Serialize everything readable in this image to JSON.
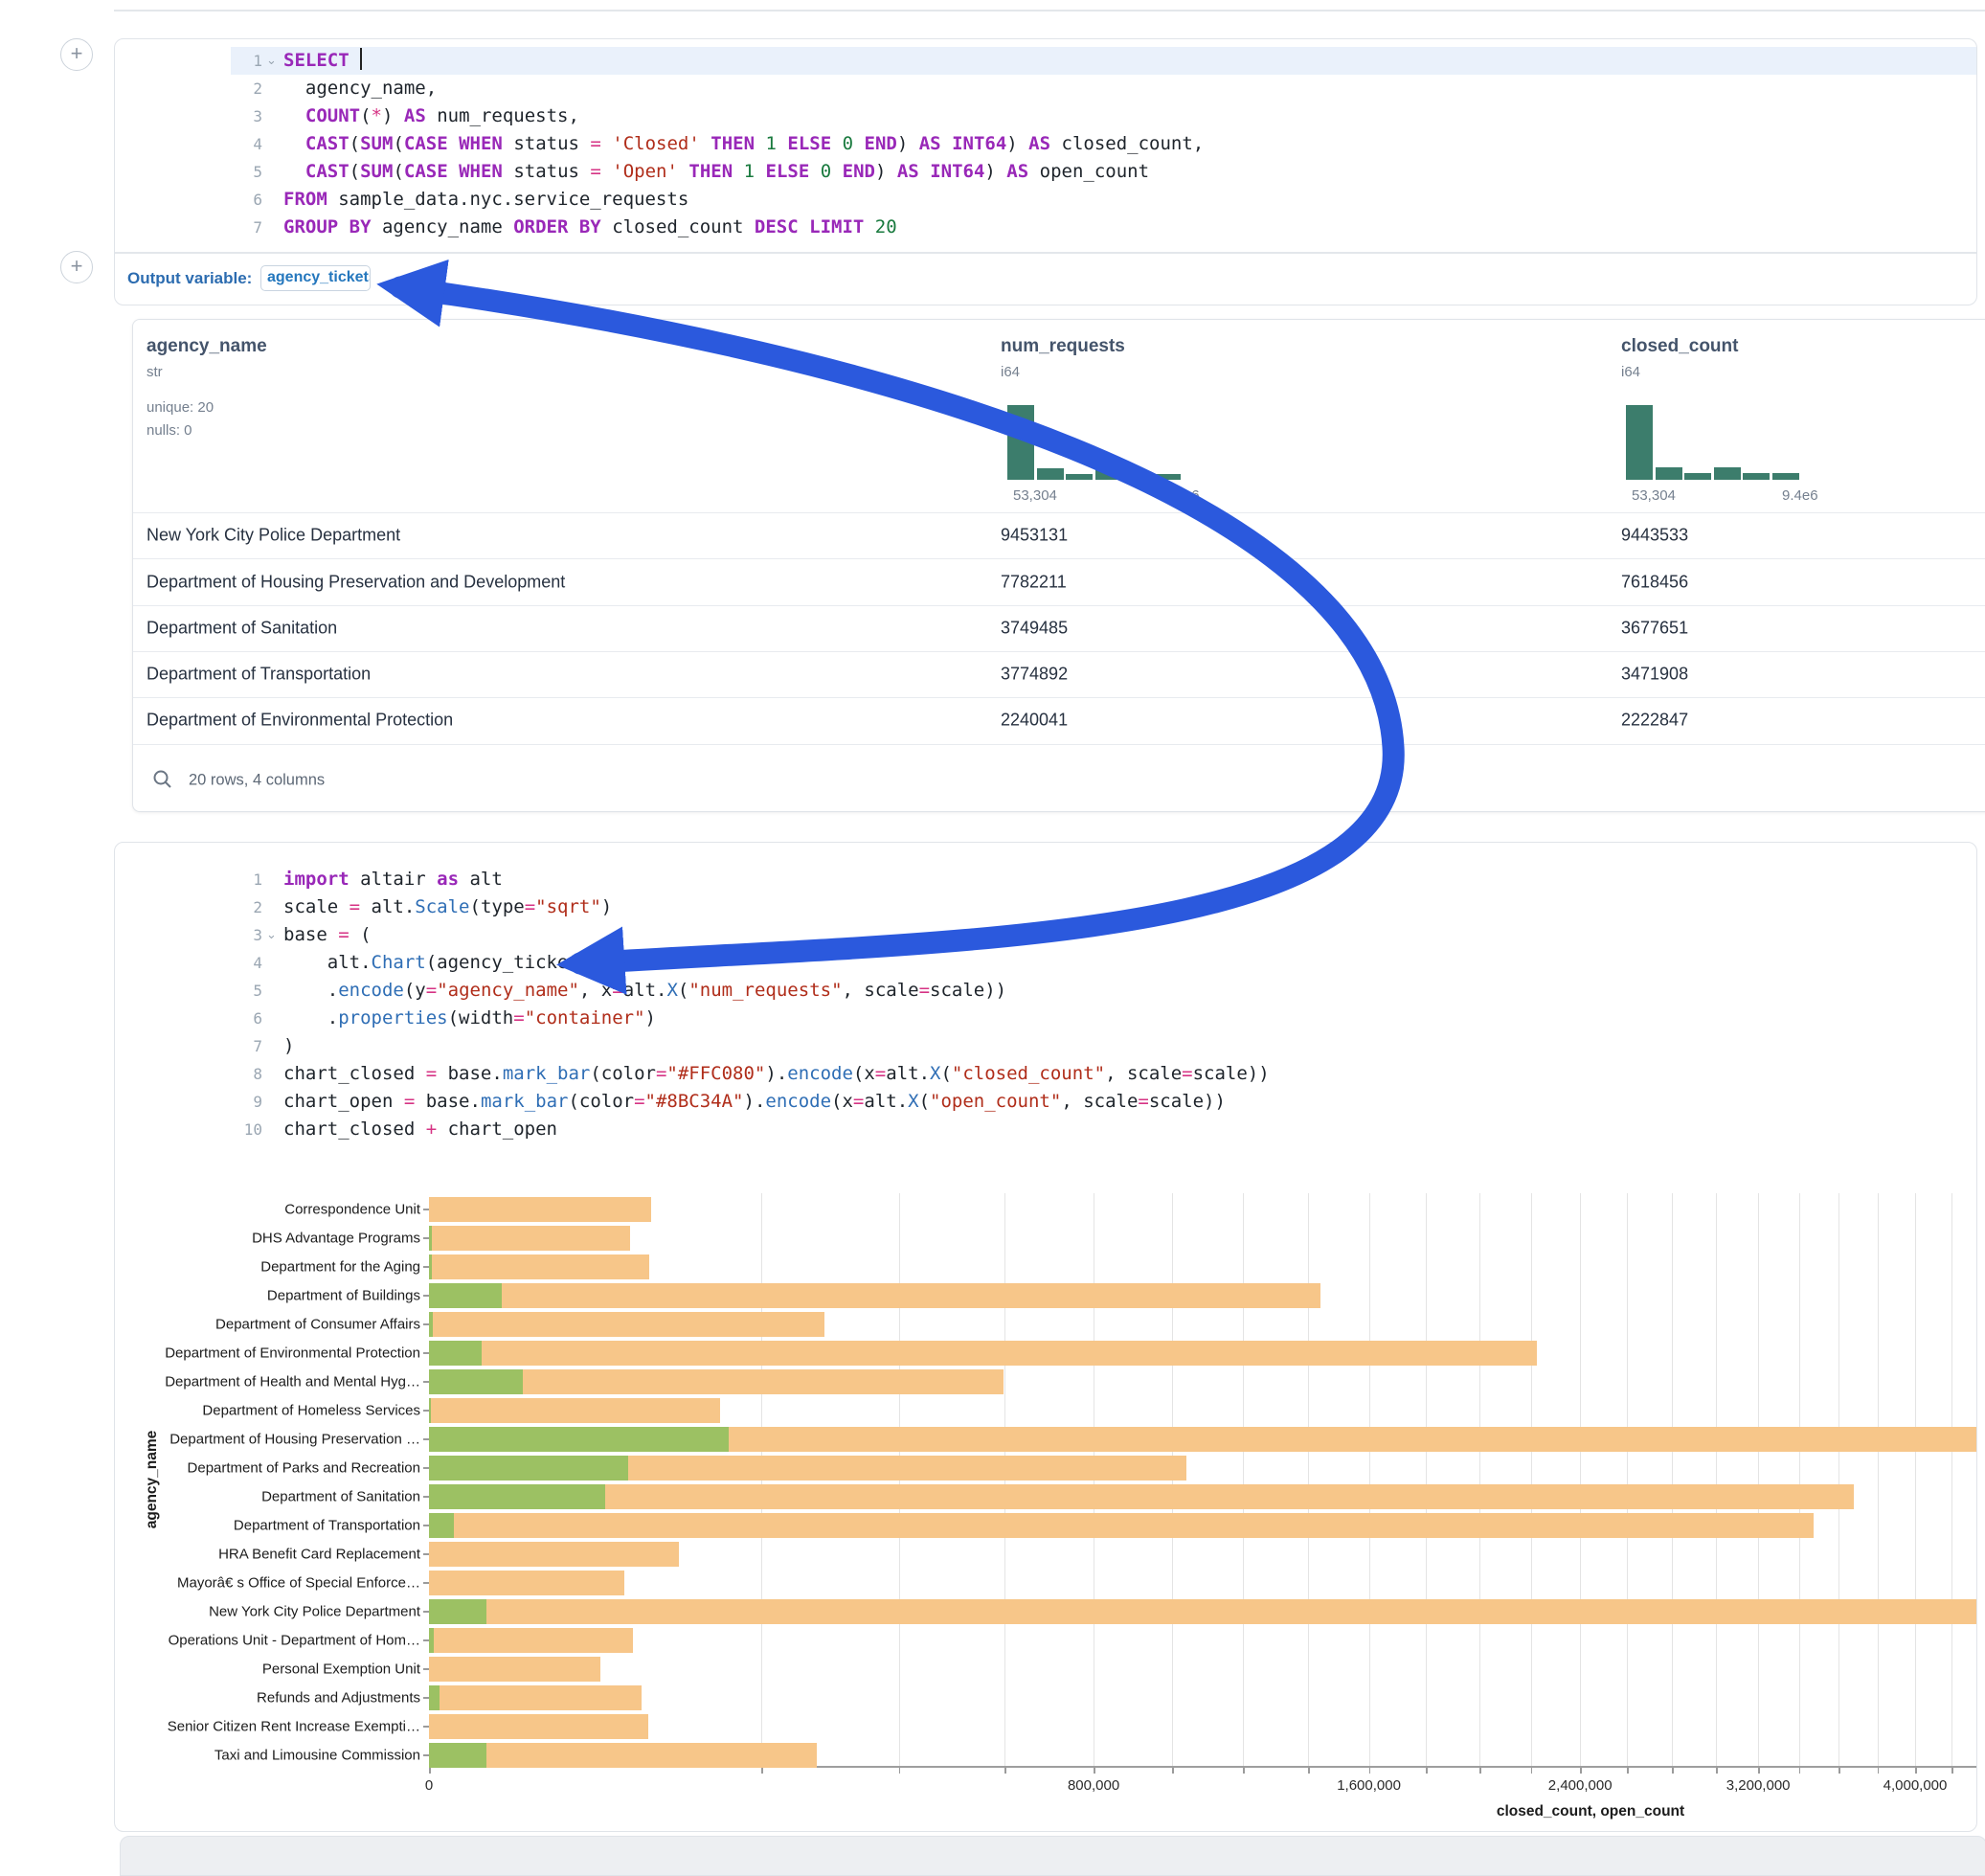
{
  "ui": {
    "plus": "+"
  },
  "sql_cell": {
    "lines": [
      {
        "num": "1",
        "chevron": true,
        "highlight": true,
        "caret": true,
        "tokens": [
          [
            "k",
            "SELECT"
          ],
          [
            "d",
            " "
          ]
        ]
      },
      {
        "num": "2",
        "tokens": [
          [
            "d",
            "  agency_name,"
          ]
        ]
      },
      {
        "num": "3",
        "tokens": [
          [
            "d",
            "  "
          ],
          [
            "k",
            "COUNT"
          ],
          [
            "d",
            "("
          ],
          [
            "o",
            "*"
          ],
          [
            "d",
            ") "
          ],
          [
            "k",
            "AS"
          ],
          [
            "d",
            " num_requests,"
          ]
        ]
      },
      {
        "num": "4",
        "tokens": [
          [
            "d",
            "  "
          ],
          [
            "k",
            "CAST"
          ],
          [
            "d",
            "("
          ],
          [
            "k",
            "SUM"
          ],
          [
            "d",
            "("
          ],
          [
            "k",
            "CASE"
          ],
          [
            "d",
            " "
          ],
          [
            "k",
            "WHEN"
          ],
          [
            "d",
            " status "
          ],
          [
            "o",
            "="
          ],
          [
            "d",
            " "
          ],
          [
            "s",
            "'Closed'"
          ],
          [
            "d",
            " "
          ],
          [
            "k",
            "THEN"
          ],
          [
            "d",
            " "
          ],
          [
            "n",
            "1"
          ],
          [
            "d",
            " "
          ],
          [
            "k",
            "ELSE"
          ],
          [
            "d",
            " "
          ],
          [
            "n",
            "0"
          ],
          [
            "d",
            " "
          ],
          [
            "k",
            "END"
          ],
          [
            "d",
            ") "
          ],
          [
            "k",
            "AS"
          ],
          [
            "d",
            " "
          ],
          [
            "k",
            "INT64"
          ],
          [
            "d",
            ") "
          ],
          [
            "k",
            "AS"
          ],
          [
            "d",
            " closed_count,"
          ]
        ]
      },
      {
        "num": "5",
        "tokens": [
          [
            "d",
            "  "
          ],
          [
            "k",
            "CAST"
          ],
          [
            "d",
            "("
          ],
          [
            "k",
            "SUM"
          ],
          [
            "d",
            "("
          ],
          [
            "k",
            "CASE"
          ],
          [
            "d",
            " "
          ],
          [
            "k",
            "WHEN"
          ],
          [
            "d",
            " status "
          ],
          [
            "o",
            "="
          ],
          [
            "d",
            " "
          ],
          [
            "s",
            "'Open'"
          ],
          [
            "d",
            " "
          ],
          [
            "k",
            "THEN"
          ],
          [
            "d",
            " "
          ],
          [
            "n",
            "1"
          ],
          [
            "d",
            " "
          ],
          [
            "k",
            "ELSE"
          ],
          [
            "d",
            " "
          ],
          [
            "n",
            "0"
          ],
          [
            "d",
            " "
          ],
          [
            "k",
            "END"
          ],
          [
            "d",
            ") "
          ],
          [
            "k",
            "AS"
          ],
          [
            "d",
            " "
          ],
          [
            "k",
            "INT64"
          ],
          [
            "d",
            ") "
          ],
          [
            "k",
            "AS"
          ],
          [
            "d",
            " open_count"
          ]
        ]
      },
      {
        "num": "6",
        "tokens": [
          [
            "k",
            "FROM"
          ],
          [
            "d",
            " sample_data.nyc.service_requests"
          ]
        ]
      },
      {
        "num": "7",
        "tokens": [
          [
            "k",
            "GROUP BY"
          ],
          [
            "d",
            " agency_name "
          ],
          [
            "k",
            "ORDER BY"
          ],
          [
            "d",
            " closed_count "
          ],
          [
            "k",
            "DESC"
          ],
          [
            "d",
            " "
          ],
          [
            "k",
            "LIMIT"
          ],
          [
            "d",
            " "
          ],
          [
            "n",
            "20"
          ]
        ]
      }
    ],
    "output_variable_label": "Output variable:",
    "output_variable_value": "agency_tickets"
  },
  "table": {
    "columns": [
      {
        "name": "agency_name",
        "type": "str",
        "meta": {
          "unique": "unique: 20",
          "nulls": "nulls: 0"
        }
      },
      {
        "name": "num_requests",
        "type": "i64",
        "hist": [
          1,
          0.16,
          0.08,
          0.16,
          0.09,
          0.08
        ],
        "hist_min": "53,304",
        "hist_max": "9.5e6"
      },
      {
        "name": "closed_count",
        "type": "i64",
        "hist": [
          1,
          0.17,
          0.09,
          0.17,
          0.09,
          0.09
        ],
        "hist_min": "53,304",
        "hist_max": "9.4e6"
      }
    ],
    "rows": [
      {
        "agency": "New York City Police Department",
        "num": "9453131",
        "closed": "9443533"
      },
      {
        "agency": "Department of Housing Preservation and Development",
        "num": "7782211",
        "closed": "7618456"
      },
      {
        "agency": "Department of Sanitation",
        "num": "3749485",
        "closed": "3677651"
      },
      {
        "agency": "Department of Transportation",
        "num": "3774892",
        "closed": "3471908"
      },
      {
        "agency": "Department of Environmental Protection",
        "num": "2240041",
        "closed": "2222847"
      }
    ],
    "footer": "20 rows, 4 columns"
  },
  "python_cell": {
    "lines": [
      {
        "num": "1",
        "tokens": [
          [
            "k",
            "import"
          ],
          [
            "d",
            " altair "
          ],
          [
            "k",
            "as"
          ],
          [
            "d",
            " alt"
          ]
        ]
      },
      {
        "num": "2",
        "tokens": [
          [
            "d",
            "scale "
          ],
          [
            "o",
            "="
          ],
          [
            "d",
            " alt."
          ],
          [
            "f",
            "Scale"
          ],
          [
            "d",
            "(type"
          ],
          [
            "o",
            "="
          ],
          [
            "s",
            "\"sqrt\""
          ],
          [
            "d",
            ")"
          ]
        ]
      },
      {
        "num": "3",
        "chevron": true,
        "tokens": [
          [
            "d",
            "base "
          ],
          [
            "o",
            "="
          ],
          [
            "d",
            " ("
          ]
        ]
      },
      {
        "num": "4",
        "tokens": [
          [
            "d",
            "    alt."
          ],
          [
            "f",
            "Chart"
          ],
          [
            "d",
            "(agency_tickets)"
          ]
        ]
      },
      {
        "num": "5",
        "tokens": [
          [
            "d",
            "    ."
          ],
          [
            "f",
            "encode"
          ],
          [
            "d",
            "(y"
          ],
          [
            "o",
            "="
          ],
          [
            "s",
            "\"agency_name\""
          ],
          [
            "d",
            ", x"
          ],
          [
            "o",
            "="
          ],
          [
            "d",
            "alt."
          ],
          [
            "f",
            "X"
          ],
          [
            "d",
            "("
          ],
          [
            "s",
            "\"num_requests\""
          ],
          [
            "d",
            ", scale"
          ],
          [
            "o",
            "="
          ],
          [
            "d",
            "scale))"
          ]
        ]
      },
      {
        "num": "6",
        "tokens": [
          [
            "d",
            "    ."
          ],
          [
            "f",
            "properties"
          ],
          [
            "d",
            "(width"
          ],
          [
            "o",
            "="
          ],
          [
            "s",
            "\"container\""
          ],
          [
            "d",
            ")"
          ]
        ]
      },
      {
        "num": "7",
        "tokens": [
          [
            "d",
            ")"
          ]
        ]
      },
      {
        "num": "8",
        "tokens": [
          [
            "d",
            "chart_closed "
          ],
          [
            "o",
            "="
          ],
          [
            "d",
            " base."
          ],
          [
            "f",
            "mark_bar"
          ],
          [
            "d",
            "(color"
          ],
          [
            "o",
            "="
          ],
          [
            "s",
            "\"#FFC080\""
          ],
          [
            "d",
            ")."
          ],
          [
            "f",
            "encode"
          ],
          [
            "d",
            "(x"
          ],
          [
            "o",
            "="
          ],
          [
            "d",
            "alt."
          ],
          [
            "f",
            "X"
          ],
          [
            "d",
            "("
          ],
          [
            "s",
            "\"closed_count\""
          ],
          [
            "d",
            ", scale"
          ],
          [
            "o",
            "="
          ],
          [
            "d",
            "scale))"
          ]
        ]
      },
      {
        "num": "9",
        "tokens": [
          [
            "d",
            "chart_open "
          ],
          [
            "o",
            "="
          ],
          [
            "d",
            " base."
          ],
          [
            "f",
            "mark_bar"
          ],
          [
            "d",
            "(color"
          ],
          [
            "o",
            "="
          ],
          [
            "s",
            "\"#8BC34A\""
          ],
          [
            "d",
            ")."
          ],
          [
            "f",
            "encode"
          ],
          [
            "d",
            "(x"
          ],
          [
            "o",
            "="
          ],
          [
            "d",
            "alt."
          ],
          [
            "f",
            "X"
          ],
          [
            "d",
            "("
          ],
          [
            "s",
            "\"open_count\""
          ],
          [
            "d",
            ", scale"
          ],
          [
            "o",
            "="
          ],
          [
            "d",
            "scale))"
          ]
        ]
      },
      {
        "num": "10",
        "tokens": [
          [
            "d",
            "chart_closed "
          ],
          [
            "o",
            "+"
          ],
          [
            "d",
            " chart_open"
          ]
        ]
      }
    ]
  },
  "chart_data": {
    "type": "bar",
    "orientation": "horizontal",
    "x_scale": "sqrt",
    "xlabel": "closed_count, open_count",
    "ylabel": "agency_name",
    "grid": true,
    "colors": {
      "closed_count": "#FFC080",
      "open_count": "#8BC34A",
      "closed_rendered": "#f7c689",
      "open_rendered": "#9cc163"
    },
    "categories": [
      "Correspondence Unit",
      "DHS Advantage Programs",
      "Department for the Aging",
      "Department of Buildings",
      "Department of Consumer Affairs",
      "Department of Environmental Protection",
      "Department of Health and Mental Hyg…",
      "Department of Homeless Services",
      "Department of Housing Preservation …",
      "Department of Parks and Recreation",
      "Department of Sanitation",
      "Department of Transportation",
      "HRA Benefit Card Replacement",
      "Mayorâ€ s Office of Special Enforce…",
      "New York City Police Department",
      "Operations Unit - Department of Hom…",
      "Personal Exemption Unit",
      "Refunds and Adjustments",
      "Senior Citizen Rent Increase Exempti…",
      "Taxi and Limousine Commission"
    ],
    "series": [
      {
        "name": "closed_count",
        "values": [
          89000,
          73000,
          88000,
          1440000,
          283000,
          2222847,
          598000,
          153000,
          7618456,
          1040000,
          3677651,
          3471908,
          113000,
          69000,
          9443533,
          75000,
          53304,
          82000,
          87000,
          272000
        ]
      },
      {
        "name": "open_count",
        "values": [
          0,
          20,
          15,
          9600,
          30,
          5000,
          16000,
          10,
          163000,
          72000,
          56000,
          1100,
          0,
          0,
          6000,
          40,
          0,
          200,
          0,
          6000
        ]
      }
    ],
    "x_major_ticks": [
      {
        "v": 0,
        "label": "0"
      },
      {
        "v": 800000,
        "label": "800,000"
      },
      {
        "v": 1600000,
        "label": "1,600,000"
      },
      {
        "v": 2400000,
        "label": "2,400,000"
      },
      {
        "v": 3200000,
        "label": "3,200,000"
      },
      {
        "v": 4000000,
        "label": "4,000,000"
      }
    ],
    "x_minor_step": 200000,
    "x_max_drawn": 4400000
  }
}
